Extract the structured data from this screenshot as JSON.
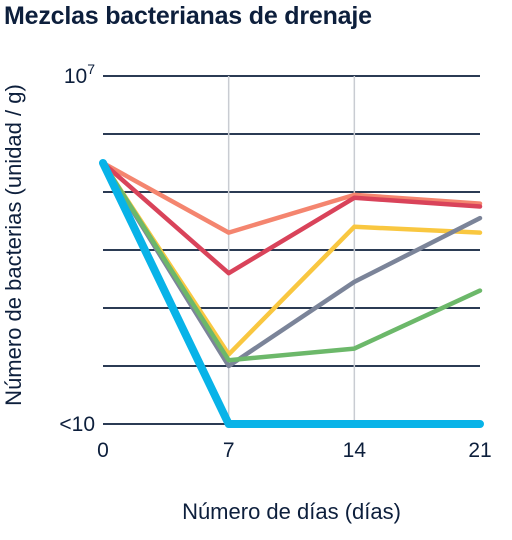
{
  "chart_data": {
    "type": "line",
    "title": "Mezclas bacterianas de drenaje",
    "xlabel": "Número de días (días)",
    "ylabel": "Número de bacterias (unidad / g)",
    "x": [
      0,
      7,
      14,
      21
    ],
    "x_tick_labels": [
      "0",
      "7",
      "14",
      "21"
    ],
    "ylim": [
      1,
      7
    ],
    "y_tick_labels": [
      {
        "value": 7,
        "base": "10",
        "exponent": "7"
      },
      {
        "value": 1,
        "base": "<10",
        "exponent": ""
      }
    ],
    "y_grid_levels": [
      1,
      2,
      3,
      4,
      5,
      6,
      7
    ],
    "grid": true,
    "series": [
      {
        "color": "#f4856f",
        "values": [
          5.5,
          4.3,
          4.95,
          4.8
        ]
      },
      {
        "color": "#d9435a",
        "values": [
          5.5,
          3.6,
          4.9,
          4.75
        ]
      },
      {
        "color": "#f9c740",
        "values": [
          5.5,
          2.2,
          4.4,
          4.3
        ]
      },
      {
        "color": "#7b8499",
        "values": [
          5.5,
          2.0,
          3.45,
          4.55
        ]
      },
      {
        "color": "#6cb86a",
        "values": [
          5.5,
          2.1,
          2.3,
          3.3
        ]
      },
      {
        "color": "#08b3e8",
        "values": [
          5.5,
          1.0,
          1.0,
          1.0
        ],
        "emphasis": true
      }
    ]
  }
}
